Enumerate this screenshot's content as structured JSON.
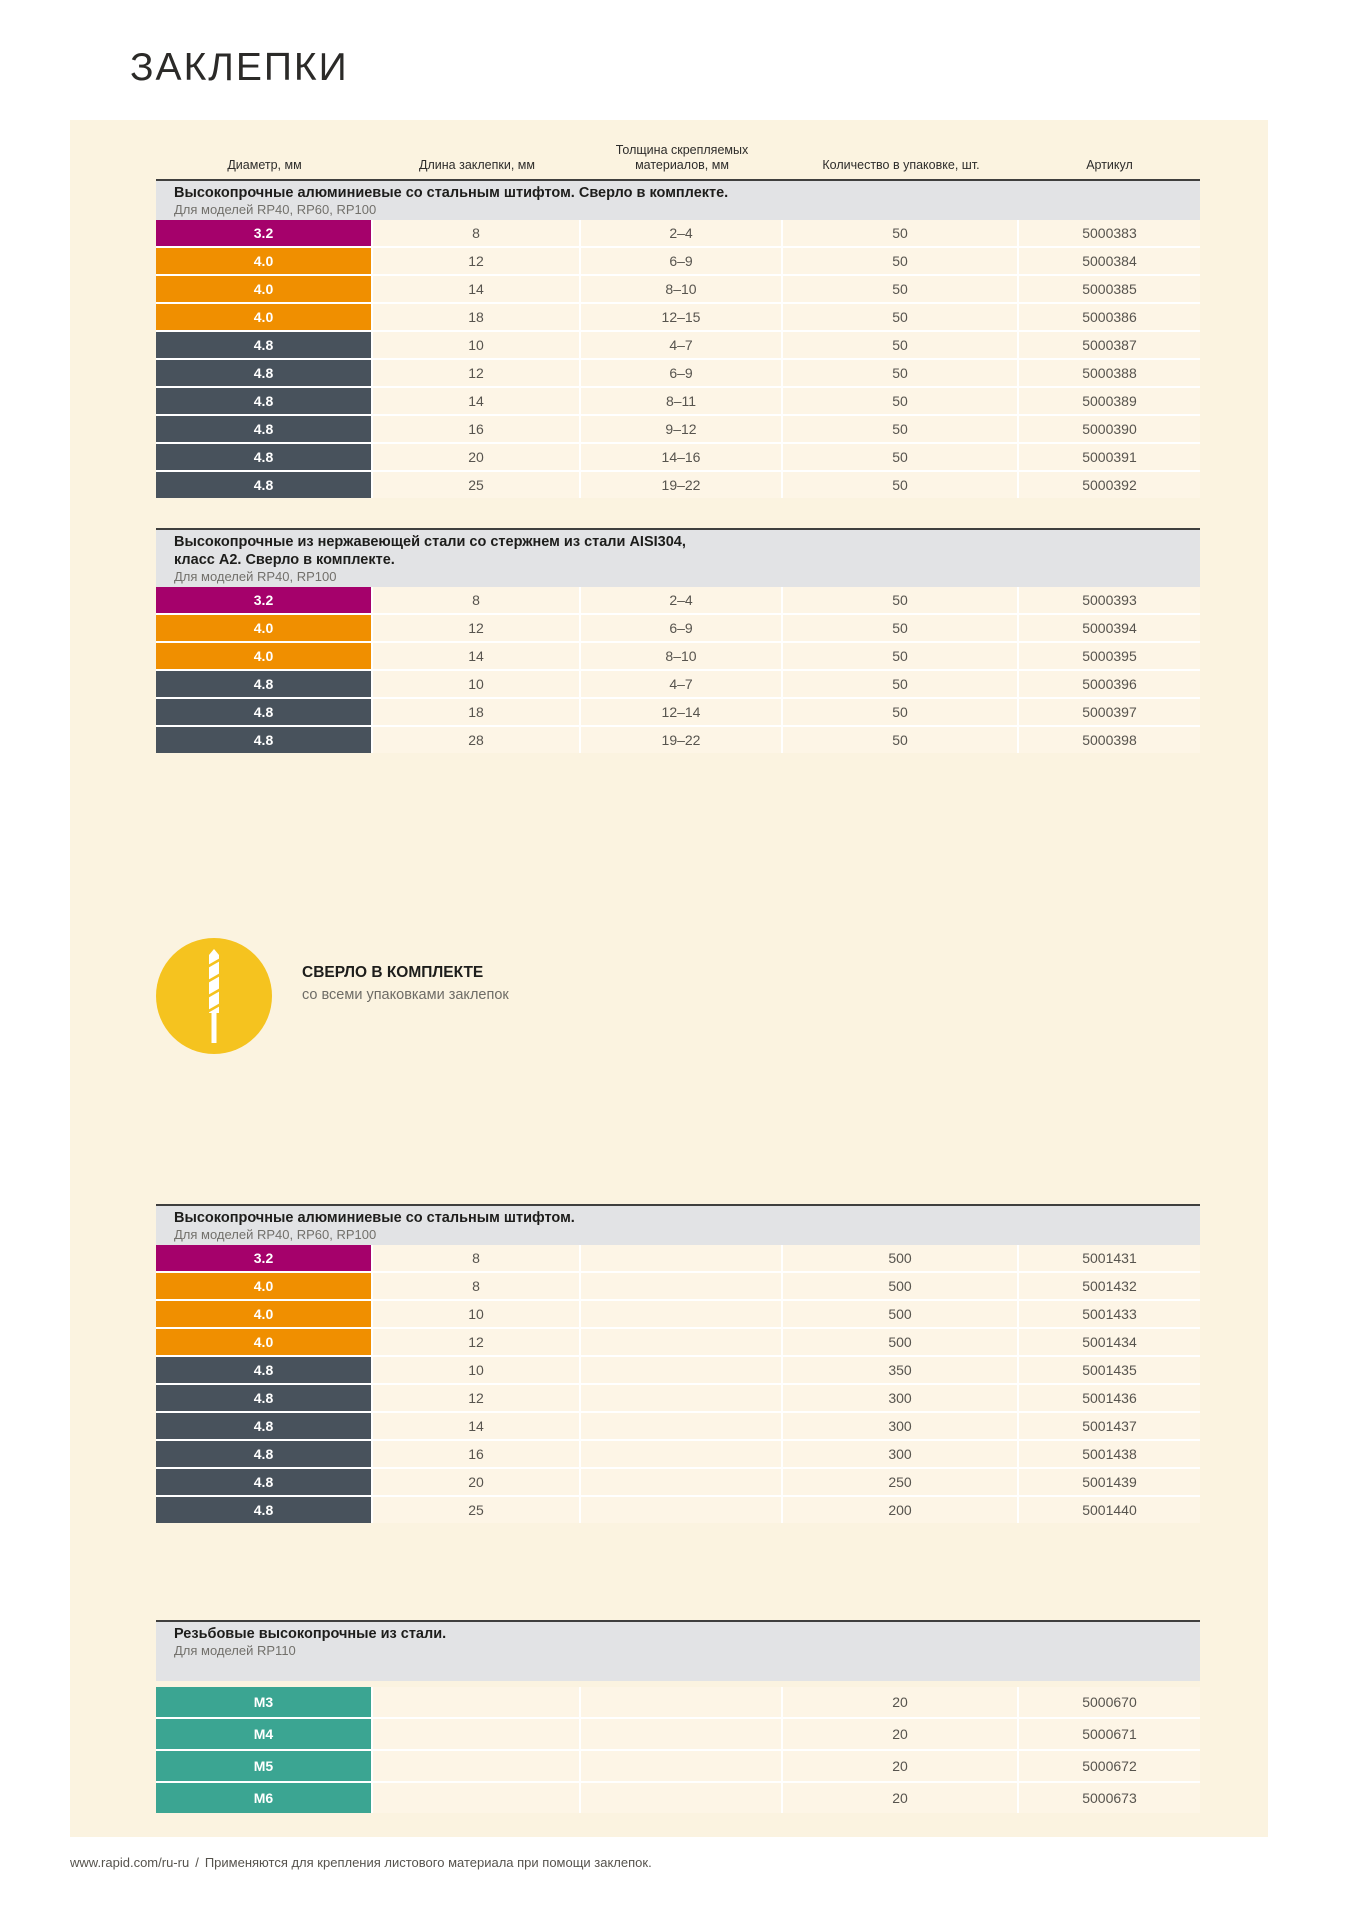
{
  "page_title": "ЗАКЛЕПКИ",
  "columns": [
    "Диаметр, мм",
    "Длина заклепки, мм",
    "Толщина скрепляемых материалов, мм",
    "Количество в упаковке, шт.",
    "Артикул"
  ],
  "colors": {
    "magenta": "#A5016B",
    "orange": "#F08F00",
    "slate": "#48525C",
    "teal": "#3BA592",
    "panel_bg": "#FBF3E0",
    "section_header_bg": "#E2E3E5",
    "callout_yellow": "#F5C31F"
  },
  "sections": [
    {
      "title_lines": [
        "Высокопрочные алюминиевые со стальным штифтом. Сверло в комплекте."
      ],
      "subtitle": "Для моделей RP40, RP60, RP100",
      "rows": [
        {
          "diameter": "3.2",
          "color": "magenta",
          "length": "8",
          "thickness": "2–4",
          "qty": "50",
          "sku": "5000383"
        },
        {
          "diameter": "4.0",
          "color": "orange",
          "length": "12",
          "thickness": "6–9",
          "qty": "50",
          "sku": "5000384"
        },
        {
          "diameter": "4.0",
          "color": "orange",
          "length": "14",
          "thickness": "8–10",
          "qty": "50",
          "sku": "5000385"
        },
        {
          "diameter": "4.0",
          "color": "orange",
          "length": "18",
          "thickness": "12–15",
          "qty": "50",
          "sku": "5000386"
        },
        {
          "diameter": "4.8",
          "color": "slate",
          "length": "10",
          "thickness": "4–7",
          "qty": "50",
          "sku": "5000387"
        },
        {
          "diameter": "4.8",
          "color": "slate",
          "length": "12",
          "thickness": "6–9",
          "qty": "50",
          "sku": "5000388"
        },
        {
          "diameter": "4.8",
          "color": "slate",
          "length": "14",
          "thickness": "8–11",
          "qty": "50",
          "sku": "5000389"
        },
        {
          "diameter": "4.8",
          "color": "slate",
          "length": "16",
          "thickness": "9–12",
          "qty": "50",
          "sku": "5000390"
        },
        {
          "diameter": "4.8",
          "color": "slate",
          "length": "20",
          "thickness": "14–16",
          "qty": "50",
          "sku": "5000391"
        },
        {
          "diameter": "4.8",
          "color": "slate",
          "length": "25",
          "thickness": "19–22",
          "qty": "50",
          "sku": "5000392"
        }
      ]
    },
    {
      "title_lines": [
        "Высокопрочные из нержавеющей стали со стержнем из стали AISI304,",
        "класс А2. Сверло в комплекте."
      ],
      "subtitle": "Для моделей RP40, RP100",
      "rows": [
        {
          "diameter": "3.2",
          "color": "magenta",
          "length": "8",
          "thickness": "2–4",
          "qty": "50",
          "sku": "5000393"
        },
        {
          "diameter": "4.0",
          "color": "orange",
          "length": "12",
          "thickness": "6–9",
          "qty": "50",
          "sku": "5000394"
        },
        {
          "diameter": "4.0",
          "color": "orange",
          "length": "14",
          "thickness": "8–10",
          "qty": "50",
          "sku": "5000395"
        },
        {
          "diameter": "4.8",
          "color": "slate",
          "length": "10",
          "thickness": "4–7",
          "qty": "50",
          "sku": "5000396"
        },
        {
          "diameter": "4.8",
          "color": "slate",
          "length": "18",
          "thickness": "12–14",
          "qty": "50",
          "sku": "5000397"
        },
        {
          "diameter": "4.8",
          "color": "slate",
          "length": "28",
          "thickness": "19–22",
          "qty": "50",
          "sku": "5000398"
        }
      ]
    },
    {
      "title_lines": [
        "Высокопрочные алюминиевые со стальным штифтом."
      ],
      "subtitle": "Для моделей RP40, RP60, RP100",
      "rows": [
        {
          "diameter": "3.2",
          "color": "magenta",
          "length": "8",
          "thickness": "",
          "qty": "500",
          "sku": "5001431"
        },
        {
          "diameter": "4.0",
          "color": "orange",
          "length": "8",
          "thickness": "",
          "qty": "500",
          "sku": "5001432"
        },
        {
          "diameter": "4.0",
          "color": "orange",
          "length": "10",
          "thickness": "",
          "qty": "500",
          "sku": "5001433"
        },
        {
          "diameter": "4.0",
          "color": "orange",
          "length": "12",
          "thickness": "",
          "qty": "500",
          "sku": "5001434"
        },
        {
          "diameter": "4.8",
          "color": "slate",
          "length": "10",
          "thickness": "",
          "qty": "350",
          "sku": "5001435"
        },
        {
          "diameter": "4.8",
          "color": "slate",
          "length": "12",
          "thickness": "",
          "qty": "300",
          "sku": "5001436"
        },
        {
          "diameter": "4.8",
          "color": "slate",
          "length": "14",
          "thickness": "",
          "qty": "300",
          "sku": "5001437"
        },
        {
          "diameter": "4.8",
          "color": "slate",
          "length": "16",
          "thickness": "",
          "qty": "300",
          "sku": "5001438"
        },
        {
          "diameter": "4.8",
          "color": "slate",
          "length": "20",
          "thickness": "",
          "qty": "250",
          "sku": "5001439"
        },
        {
          "diameter": "4.8",
          "color": "slate",
          "length": "25",
          "thickness": "",
          "qty": "200",
          "sku": "5001440"
        }
      ]
    },
    {
      "title_lines": [
        "Резьбовые высокопрочные из стали."
      ],
      "subtitle": "Для моделей RP110",
      "rows": [
        {
          "diameter": "М3",
          "color": "teal",
          "length": "",
          "thickness": "",
          "qty": "20",
          "sku": "5000670"
        },
        {
          "diameter": "М4",
          "color": "teal",
          "length": "",
          "thickness": "",
          "qty": "20",
          "sku": "5000671"
        },
        {
          "diameter": "М5",
          "color": "teal",
          "length": "",
          "thickness": "",
          "qty": "20",
          "sku": "5000672"
        },
        {
          "diameter": "М6",
          "color": "teal",
          "length": "",
          "thickness": "",
          "qty": "20",
          "sku": "5000673"
        }
      ]
    }
  ],
  "callout": {
    "title": "СВЕРЛО В КОМПЛЕКТЕ",
    "subtitle": "со всеми упаковками заклепок",
    "icon": "drill-bit-icon"
  },
  "footer": {
    "url": "www.rapid.com/ru-ru",
    "separator": "/",
    "text": "Применяются для крепления листового материала при помощи заклепок."
  }
}
